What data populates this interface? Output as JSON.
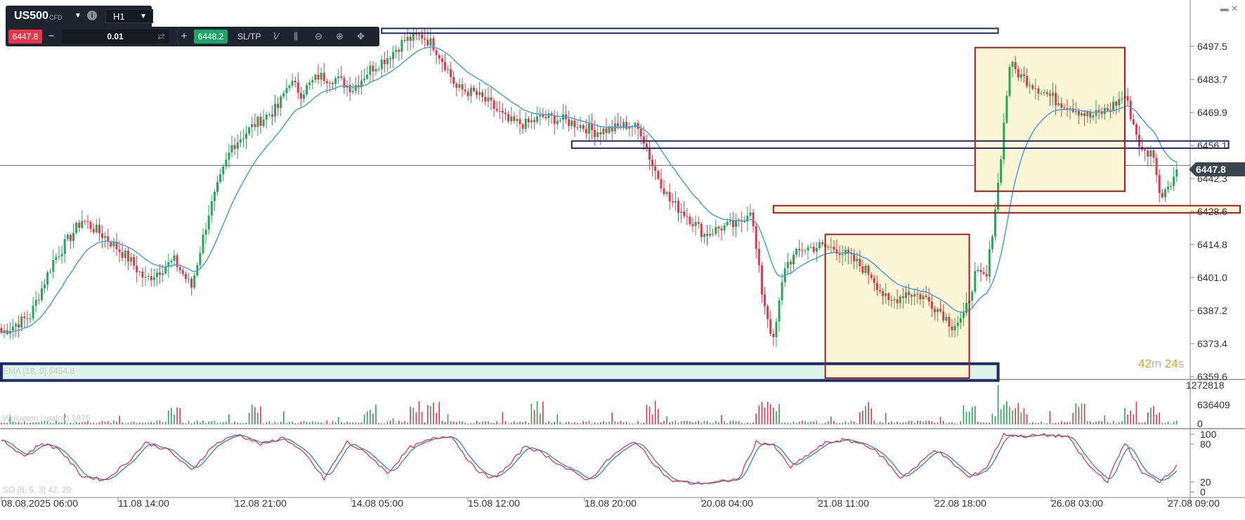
{
  "window": {
    "minimize_icon": "▬",
    "close_icon": "✕"
  },
  "toolbar": {
    "symbol": "US500",
    "symbol_type": "CFD",
    "info_icon": "i",
    "timeframe": "H1",
    "sell_price": "6447.8",
    "minus_label": "−",
    "volume": "0.01",
    "plus_label": "+",
    "buy_price": "6448.2",
    "sltp_label": "SL/TP",
    "icons": [
      "line-chart-icon",
      "candles-icon",
      "zoom-out-icon",
      "zoom-in-icon",
      "crosshair-icon"
    ]
  },
  "timer": {
    "minutes": "42",
    "minutes_unit": "m",
    "seconds": "24",
    "seconds_unit": "s"
  },
  "current_price": "6447.8",
  "indicators": {
    "ema_label": "EMA [18, 0] 6454.8",
    "volume_label": "Wolumen (realny) 1876",
    "so_label": "SO [8, 5, 3] 42, 29"
  },
  "colors": {
    "up": "#26a65b",
    "down": "#e0374b",
    "ema": "#4a9fe0",
    "zone_border_blue": "#1c2a6b",
    "zone_border_red": "#a31f1f",
    "zone_fill_yellow": "#fcf5d6",
    "zone_fill_mint": "#dff3ea",
    "stoch_k": "#e0374b",
    "stoch_d": "#4a8ec9",
    "timer": "#f29a1e"
  },
  "chart_data": [
    {
      "type": "candlestick",
      "title": "US500 H1",
      "symbol": "US500",
      "timeframe": "H1",
      "ylim": [
        6355,
        6512
      ],
      "y_ticks": [
        "6497.5",
        "6483.7",
        "6469.9",
        "6456.1",
        "6442.3",
        "6428.6",
        "6414.8",
        "6401.0",
        "6387.2",
        "6373.4",
        "6359.6"
      ],
      "x_ticks": [
        "08.08.2025 06:00",
        "11.08 14:00",
        "12.08 21:00",
        "14.08 05:00",
        "15.08 12:00",
        "18.08 20:00",
        "20.08 04:00",
        "21.08 11:00",
        "22.08 18:00",
        "26.08 03:00",
        "27.08 09:00"
      ],
      "close_anchors": [
        [
          0,
          6378
        ],
        [
          10,
          6385
        ],
        [
          18,
          6408
        ],
        [
          28,
          6425
        ],
        [
          36,
          6418
        ],
        [
          44,
          6409
        ],
        [
          50,
          6400
        ],
        [
          56,
          6405
        ],
        [
          60,
          6408
        ],
        [
          66,
          6397
        ],
        [
          72,
          6428
        ],
        [
          80,
          6456
        ],
        [
          88,
          6465
        ],
        [
          96,
          6472
        ],
        [
          100,
          6483
        ],
        [
          104,
          6478
        ],
        [
          110,
          6485
        ],
        [
          116,
          6484
        ],
        [
          122,
          6480
        ],
        [
          128,
          6488
        ],
        [
          134,
          6493
        ],
        [
          140,
          6500
        ],
        [
          146,
          6502
        ],
        [
          150,
          6498
        ],
        [
          154,
          6490
        ],
        [
          158,
          6480
        ],
        [
          164,
          6478
        ],
        [
          170,
          6473
        ],
        [
          176,
          6466
        ],
        [
          182,
          6465
        ],
        [
          188,
          6468
        ],
        [
          194,
          6467
        ],
        [
          200,
          6465
        ],
        [
          206,
          6462
        ],
        [
          212,
          6463
        ],
        [
          218,
          6465
        ],
        [
          222,
          6462
        ],
        [
          226,
          6448
        ],
        [
          232,
          6433
        ],
        [
          238,
          6427
        ],
        [
          244,
          6419
        ],
        [
          250,
          6422
        ],
        [
          256,
          6423
        ],
        [
          260,
          6430
        ],
        [
          264,
          6395
        ],
        [
          268,
          6374
        ],
        [
          272,
          6406
        ],
        [
          278,
          6413
        ],
        [
          284,
          6414
        ],
        [
          290,
          6413
        ],
        [
          296,
          6408
        ],
        [
          302,
          6402
        ],
        [
          308,
          6390
        ],
        [
          314,
          6395
        ],
        [
          320,
          6393
        ],
        [
          326,
          6387
        ],
        [
          330,
          6381
        ],
        [
          334,
          6384
        ],
        [
          338,
          6402
        ],
        [
          342,
          6401
        ],
        [
          346,
          6440
        ],
        [
          350,
          6490
        ],
        [
          354,
          6485
        ],
        [
          360,
          6480
        ],
        [
          366,
          6475
        ],
        [
          372,
          6472
        ],
        [
          378,
          6468
        ],
        [
          384,
          6471
        ],
        [
          390,
          6477
        ],
        [
          396,
          6453
        ],
        [
          400,
          6453
        ],
        [
          402,
          6435
        ],
        [
          408,
          6445
        ]
      ],
      "ema": {
        "name": "EMA [18, 0]",
        "last": 6454.8
      },
      "horizontal_line": 6447.8,
      "zones": [
        {
          "color": "blue",
          "from_bar": 0,
          "to_bar": 346,
          "y_low": 6358,
          "y_high": 6365
        },
        {
          "color": "blue",
          "from_bar": 132,
          "to_bar": 346,
          "y_low": 6503,
          "y_high": 6505
        },
        {
          "color": "blue",
          "from_bar": 198,
          "to_bar": 426,
          "y_low": 6455,
          "y_high": 6458
        },
        {
          "color": "red",
          "from_bar": 268,
          "to_bar": 430,
          "y_low": 6428,
          "y_high": 6431
        },
        {
          "color": "red",
          "fill": "yellow",
          "from_bar": 286,
          "to_bar": 336,
          "y_low": 6359,
          "y_high": 6419
        },
        {
          "color": "red",
          "fill": "yellow",
          "from_bar": 338,
          "to_bar": 390,
          "y_low": 6437,
          "y_high": 6497
        }
      ]
    },
    {
      "type": "bar",
      "title": "Wolumen (realny)",
      "last": 1876,
      "ylim": [
        0,
        1272818
      ],
      "y_ticks": [
        "1272818",
        "636409",
        "0"
      ]
    },
    {
      "type": "line",
      "title": "SO [8, 5, 3]",
      "series": [
        {
          "name": "%K",
          "last": 42
        },
        {
          "name": "%D",
          "last": 29
        }
      ],
      "ylim": [
        0,
        100
      ],
      "y_ticks": [
        "100",
        "80",
        "20",
        "0"
      ],
      "k_anchors": [
        [
          0,
          88
        ],
        [
          8,
          60
        ],
        [
          14,
          82
        ],
        [
          20,
          72
        ],
        [
          28,
          25
        ],
        [
          36,
          18
        ],
        [
          44,
          50
        ],
        [
          50,
          83
        ],
        [
          58,
          70
        ],
        [
          66,
          35
        ],
        [
          74,
          80
        ],
        [
          82,
          98
        ],
        [
          90,
          80
        ],
        [
          98,
          92
        ],
        [
          106,
          60
        ],
        [
          112,
          20
        ],
        [
          120,
          84
        ],
        [
          128,
          60
        ],
        [
          134,
          30
        ],
        [
          142,
          75
        ],
        [
          150,
          90
        ],
        [
          156,
          96
        ],
        [
          164,
          40
        ],
        [
          170,
          20
        ],
        [
          176,
          42
        ],
        [
          182,
          78
        ],
        [
          188,
          64
        ],
        [
          196,
          38
        ],
        [
          204,
          18
        ],
        [
          212,
          60
        ],
        [
          220,
          86
        ],
        [
          226,
          50
        ],
        [
          232,
          18
        ],
        [
          240,
          12
        ],
        [
          248,
          14
        ],
        [
          256,
          20
        ],
        [
          262,
          84
        ],
        [
          268,
          78
        ],
        [
          274,
          40
        ],
        [
          280,
          62
        ],
        [
          286,
          82
        ],
        [
          292,
          88
        ],
        [
          300,
          80
        ],
        [
          306,
          58
        ],
        [
          312,
          22
        ],
        [
          318,
          42
        ],
        [
          324,
          72
        ],
        [
          330,
          48
        ],
        [
          336,
          22
        ],
        [
          342,
          40
        ],
        [
          348,
          98
        ],
        [
          354,
          94
        ],
        [
          362,
          96
        ],
        [
          370,
          94
        ],
        [
          378,
          40
        ],
        [
          384,
          16
        ],
        [
          390,
          84
        ],
        [
          396,
          30
        ],
        [
          402,
          16
        ],
        [
          408,
          42
        ]
      ]
    }
  ]
}
